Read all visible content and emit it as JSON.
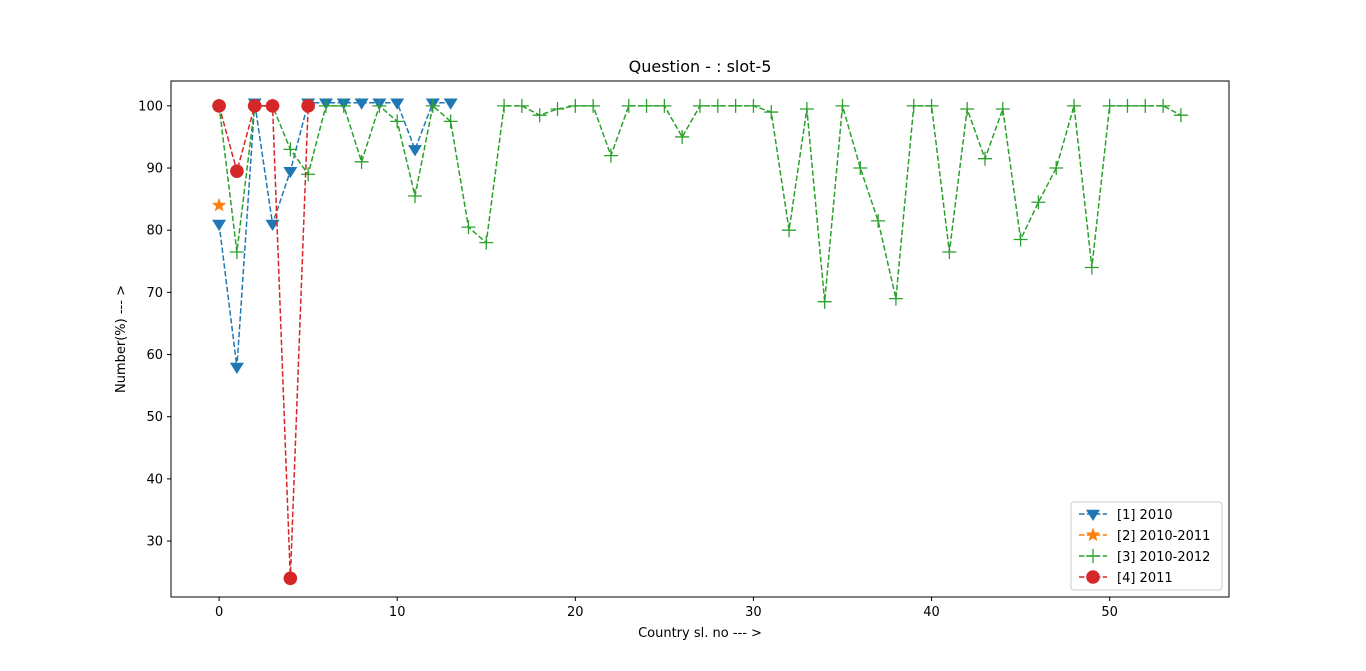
{
  "chart_data": {
    "type": "line",
    "title": "Question - : slot-5",
    "xlabel": "Country sl. no --- >",
    "ylabel": "Number(%) --- >",
    "xlim": [
      -2.7,
      56.7
    ],
    "ylim": [
      21,
      104
    ],
    "x_ticks": [
      0,
      10,
      20,
      30,
      40,
      50
    ],
    "y_ticks": [
      30,
      40,
      50,
      60,
      70,
      80,
      90,
      100
    ],
    "grid": false,
    "legend_position": "lower-right",
    "series": [
      {
        "name": "[1] 2010",
        "color": "#1f77b4",
        "marker": "triangle-down",
        "linestyle": "dashed",
        "x": [
          0,
          1,
          2,
          3,
          4,
          5,
          6,
          7,
          8,
          9,
          10,
          11,
          12,
          13
        ],
        "values": [
          81,
          58,
          100.5,
          81,
          89.5,
          100.5,
          100.5,
          100.5,
          100.5,
          100.5,
          100.5,
          93,
          100.5,
          100.5
        ]
      },
      {
        "name": "[2] 2010-2011",
        "color": "#ff7f0e",
        "marker": "star",
        "linestyle": "dashed",
        "x": [
          0
        ],
        "values": [
          84
        ]
      },
      {
        "name": "[3] 2010-2012",
        "color": "#2ca02c",
        "marker": "plus",
        "linestyle": "dashed",
        "x": [
          0,
          1,
          2,
          3,
          4,
          5,
          6,
          7,
          8,
          9,
          10,
          11,
          12,
          13,
          14,
          15,
          16,
          17,
          18,
          19,
          20,
          21,
          22,
          23,
          24,
          25,
          26,
          27,
          28,
          29,
          30,
          31,
          32,
          33,
          34,
          35,
          36,
          37,
          38,
          39,
          40,
          41,
          42,
          43,
          44,
          45,
          46,
          47,
          48,
          49,
          50,
          51,
          52,
          53,
          54
        ],
        "values": [
          100,
          76.5,
          100,
          100,
          93,
          89,
          100,
          100,
          91,
          100,
          97.5,
          85.5,
          100,
          97.5,
          80.5,
          78,
          100,
          100,
          98.5,
          99.5,
          100,
          100,
          92,
          100,
          100,
          100,
          95,
          100,
          100,
          100,
          100,
          99,
          80,
          99.5,
          68.5,
          100,
          90,
          81.5,
          69,
          100,
          100,
          76.5,
          99.5,
          91.5,
          99.5,
          78.5,
          84.5,
          90,
          100,
          74,
          100,
          100,
          100,
          100,
          98.5
        ]
      },
      {
        "name": "[4] 2011",
        "color": "#d62728",
        "marker": "circle",
        "linestyle": "dashed",
        "x": [
          0,
          1,
          2,
          3,
          4,
          5
        ],
        "values": [
          100,
          89.5,
          100,
          100,
          24,
          100
        ]
      }
    ]
  }
}
